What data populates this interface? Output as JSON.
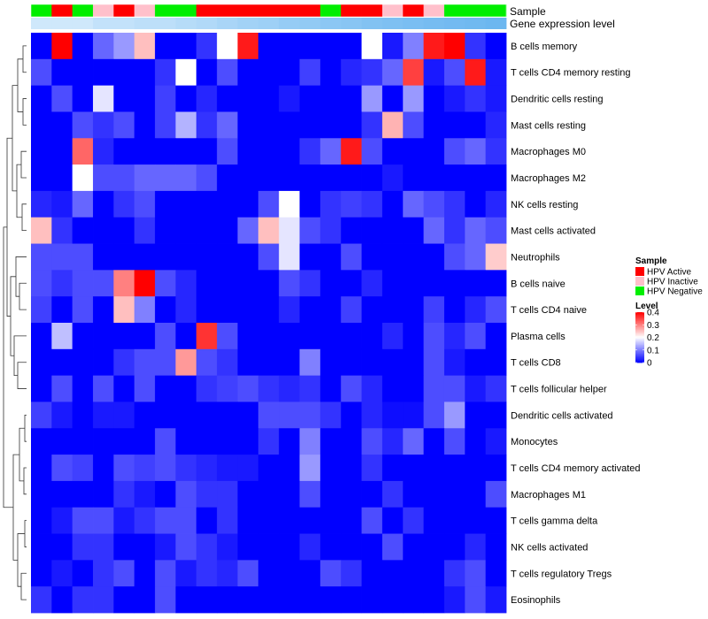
{
  "chart_data": {
    "type": "heatmap",
    "title": "",
    "annotation_tracks": [
      "Sample",
      "Gene expression level"
    ],
    "rows": [
      "B cells memory",
      "T cells CD4 memory resting",
      "Dendritic cells resting",
      "Mast cells resting",
      "Macrophages M0",
      "Macrophages M2",
      "NK cells resting",
      "Mast cells activated",
      "Neutrophils",
      "B cells naive",
      "T cells CD4 naive",
      "Plasma cells",
      "T cells CD8",
      "T cells follicular helper",
      "Dendritic cells activated",
      "Monocytes",
      "T cells CD4 memory activated",
      "Macrophages M1",
      "T cells gamma delta",
      "NK cells activated",
      "T cells regulatory  Tregs",
      "Eosinophils"
    ],
    "sample_groups": [
      "Negative",
      "Active",
      "Negative",
      "Inactive",
      "Active",
      "Inactive",
      "Negative",
      "Negative",
      "Active",
      "Active",
      "Active",
      "Active",
      "Active",
      "Active",
      "Negative",
      "Active",
      "Active",
      "Inactive",
      "Active",
      "Inactive",
      "Negative",
      "Negative",
      "Negative"
    ],
    "expression_level": [
      0,
      0,
      0,
      0.12,
      0.12,
      0.18,
      0.18,
      0.25,
      0.3,
      0.38,
      0.45,
      0.5,
      0.58,
      0.62,
      0.68,
      0.72,
      0.78,
      0.82,
      0.86,
      0.9,
      0.93,
      0.96,
      1
    ],
    "values": [
      [
        0,
        0.4,
        0,
        0.08,
        0.12,
        0.25,
        0,
        0,
        0.04,
        0.2,
        0.38,
        0,
        0,
        0,
        0,
        0,
        0.2,
        0.02,
        0.1,
        0.38,
        0.4,
        0.04,
        0
      ],
      [
        0.06,
        0,
        0,
        0,
        0,
        0,
        0.04,
        0.2,
        0,
        0.06,
        0,
        0,
        0,
        0.05,
        0,
        0.03,
        0.04,
        0.08,
        0.35,
        0.02,
        0.06,
        0.38,
        0.02
      ],
      [
        0,
        0.06,
        0,
        0.18,
        0,
        0,
        0.05,
        0,
        0.03,
        0,
        0,
        0,
        0.02,
        0,
        0,
        0,
        0.12,
        0,
        0.12,
        0,
        0.02,
        0.04,
        0.02
      ],
      [
        0,
        0,
        0.06,
        0.04,
        0.06,
        0,
        0.05,
        0.14,
        0.04,
        0.08,
        0,
        0,
        0,
        0,
        0,
        0,
        0.04,
        0.26,
        0.06,
        0,
        0,
        0,
        0.03
      ],
      [
        0,
        0,
        0.32,
        0.03,
        0,
        0,
        0,
        0,
        0,
        0.06,
        0,
        0,
        0,
        0.04,
        0.08,
        0.38,
        0.06,
        0,
        0,
        0,
        0.06,
        0.08,
        0.04
      ],
      [
        0,
        0,
        0.2,
        0.06,
        0.06,
        0.08,
        0.08,
        0.08,
        0.06,
        0,
        0,
        0,
        0,
        0,
        0,
        0,
        0,
        0.02,
        0,
        0,
        0,
        0,
        0
      ],
      [
        0.03,
        0.02,
        0.08,
        0,
        0.04,
        0.06,
        0,
        0,
        0,
        0,
        0,
        0.06,
        0.2,
        0,
        0.04,
        0.05,
        0.04,
        0,
        0.08,
        0.06,
        0.04,
        0,
        0.03
      ],
      [
        0.25,
        0.04,
        0,
        0,
        0,
        0.04,
        0,
        0,
        0,
        0,
        0.08,
        0.25,
        0.18,
        0.06,
        0.04,
        0,
        0,
        0,
        0,
        0.08,
        0.04,
        0.08,
        0.06
      ],
      [
        0.06,
        0.06,
        0.06,
        0,
        0,
        0,
        0,
        0,
        0,
        0,
        0,
        0.06,
        0.18,
        0,
        0,
        0.06,
        0,
        0,
        0,
        0,
        0.06,
        0.08,
        0.24
      ],
      [
        0.06,
        0.04,
        0.06,
        0.06,
        0.3,
        0.4,
        0.06,
        0.03,
        0,
        0,
        0,
        0,
        0.06,
        0.04,
        0,
        0,
        0.03,
        0,
        0,
        0,
        0,
        0,
        0
      ],
      [
        0.05,
        0,
        0.06,
        0,
        0.25,
        0.1,
        0,
        0.03,
        0,
        0,
        0,
        0,
        0.03,
        0,
        0,
        0.05,
        0,
        0,
        0,
        0.05,
        0,
        0.03,
        0.06
      ],
      [
        0,
        0.15,
        0,
        0,
        0,
        0,
        0.06,
        0,
        0.36,
        0.06,
        0,
        0,
        0,
        0,
        0,
        0,
        0,
        0.03,
        0,
        0.06,
        0.03,
        0.06,
        0
      ],
      [
        0,
        0,
        0,
        0,
        0.04,
        0.06,
        0.06,
        0.28,
        0.06,
        0.04,
        0,
        0,
        0,
        0.1,
        0,
        0,
        0,
        0,
        0,
        0.06,
        0.02,
        0,
        0
      ],
      [
        0,
        0.06,
        0,
        0.06,
        0,
        0.06,
        0,
        0,
        0.04,
        0.05,
        0.06,
        0.04,
        0.03,
        0.04,
        0,
        0.06,
        0.03,
        0,
        0,
        0.06,
        0.06,
        0.02,
        0.04
      ],
      [
        0.05,
        0.02,
        0,
        0.02,
        0.02,
        0,
        0,
        0,
        0,
        0,
        0,
        0.06,
        0.06,
        0.06,
        0.04,
        0,
        0.03,
        0.01,
        0.01,
        0.06,
        0.12,
        0,
        0
      ],
      [
        0,
        0,
        0,
        0,
        0,
        0,
        0.06,
        0,
        0,
        0,
        0,
        0.04,
        0,
        0.1,
        0,
        0,
        0.06,
        0.03,
        0.08,
        0,
        0.06,
        0,
        0.02
      ],
      [
        0,
        0.06,
        0.05,
        0,
        0.06,
        0.05,
        0.06,
        0.04,
        0.03,
        0.02,
        0.02,
        0,
        0,
        0.12,
        0,
        0,
        0.04,
        0,
        0,
        0,
        0,
        0,
        0
      ],
      [
        0,
        0,
        0,
        0,
        0.04,
        0.02,
        0,
        0.06,
        0.04,
        0.04,
        0,
        0,
        0,
        0.06,
        0,
        0,
        0,
        0.04,
        0,
        0,
        0,
        0,
        0.06
      ],
      [
        0,
        0.02,
        0.06,
        0.06,
        0.02,
        0.04,
        0.06,
        0.06,
        0,
        0.04,
        0,
        0,
        0,
        0,
        0,
        0,
        0.06,
        0,
        0.04,
        0,
        0,
        0,
        0
      ],
      [
        0,
        0,
        0.04,
        0.04,
        0,
        0,
        0.02,
        0.06,
        0.04,
        0.02,
        0,
        0,
        0,
        0.03,
        0,
        0,
        0,
        0.06,
        0,
        0,
        0,
        0.03,
        0
      ],
      [
        0,
        0.02,
        0,
        0.04,
        0.06,
        0,
        0.06,
        0.02,
        0.04,
        0.03,
        0.06,
        0,
        0,
        0,
        0.06,
        0.04,
        0,
        0,
        0,
        0,
        0.04,
        0.06,
        0
      ],
      [
        0.04,
        0,
        0.04,
        0.04,
        0,
        0,
        0.06,
        0,
        0,
        0,
        0,
        0,
        0,
        0,
        0,
        0,
        0,
        0,
        0,
        0,
        0.02,
        0.06,
        0.02
      ]
    ],
    "legend": {
      "sample_title": "Sample",
      "sample_entries": [
        {
          "label": "HPV Active",
          "color": "#ff0000"
        },
        {
          "label": "HPV Inactive",
          "color": "#ffc0cb"
        },
        {
          "label": "HPV Negative",
          "color": "#00ee00"
        }
      ],
      "level_title": "Level",
      "level_ticks": [
        0,
        0.1,
        0.2,
        0.3,
        0.4
      ],
      "range": [
        0,
        0.4
      ],
      "position": "right"
    },
    "color_scale": {
      "low": "#0000ff",
      "mid": "#ffffff",
      "high": "#ff0000",
      "mid_value": 0.2
    }
  }
}
